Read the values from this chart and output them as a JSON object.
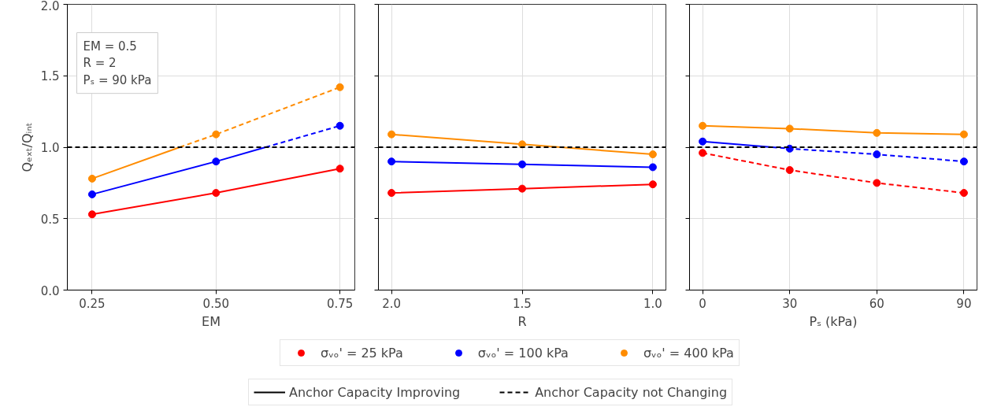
{
  "chart_data": [
    {
      "type": "line",
      "xlabel": "EM",
      "ylabel": "Qₑₓₜ/Qᵢₙₜ",
      "xlim": [
        0.2,
        0.78
      ],
      "xticks": [
        {
          "value": 0.25,
          "label": "0.25"
        },
        {
          "value": 0.5,
          "label": "0.50"
        },
        {
          "value": 0.75,
          "label": "0.75"
        }
      ],
      "ylim": [
        0,
        2
      ],
      "yticks": [
        {
          "value": 0,
          "label": "0.0"
        },
        {
          "value": 0.5,
          "label": "0.5"
        },
        {
          "value": 1,
          "label": "1.0"
        },
        {
          "value": 1.5,
          "label": "1.5"
        },
        {
          "value": 2,
          "label": "2.0"
        }
      ],
      "grid": true,
      "legend": "bottom",
      "marker": "circle",
      "annotations": [
        "EM = 0.5",
        "R = 2",
        "Pₛ = 90 kPa"
      ],
      "ref_lines": [
        {
          "axis": "y",
          "value": 1,
          "label": null,
          "color": "#000000",
          "line_style": "dashed"
        }
      ],
      "series": [
        {
          "name": "σᵥₒ' = 25 kPa",
          "type": "scatter",
          "color": "#ff0000",
          "x": [
            0.25,
            0.5,
            0.75
          ],
          "values": [
            0.53,
            0.68,
            0.85
          ]
        },
        {
          "name": "σᵥₒ' = 100 kPa",
          "type": "scatter",
          "color": "#0000ff",
          "x": [
            0.25,
            0.5,
            0.75
          ],
          "values": [
            0.67,
            0.9,
            1.15
          ]
        },
        {
          "name": "σᵥₒ' = 400 kPa",
          "type": "scatter",
          "color": "#ff8c00",
          "x": [
            0.25,
            0.5,
            0.75
          ],
          "values": [
            0.78,
            1.09,
            1.42
          ]
        },
        {
          "marker": "none",
          "color": "#ff0000",
          "line_style": "solid",
          "x": [
            0.25,
            0.5,
            0.75
          ],
          "values": [
            0.53,
            0.68,
            0.85
          ]
        },
        {
          "marker": "none",
          "color": "#0000ff",
          "line_style": "solid",
          "x": [
            0.25,
            0.5,
            0.6
          ],
          "values": [
            0.67,
            0.9,
            1.0
          ]
        },
        {
          "marker": "none",
          "color": "#0000ff",
          "line_style": "dashed",
          "x": [
            0.6,
            0.75
          ],
          "values": [
            1.0,
            1.15
          ]
        },
        {
          "marker": "none",
          "color": "#ff8c00",
          "line_style": "solid",
          "x": [
            0.25,
            0.427
          ],
          "values": [
            0.78,
            1.0
          ]
        },
        {
          "marker": "none",
          "color": "#ff8c00",
          "line_style": "dashed",
          "x": [
            0.427,
            0.5,
            0.75
          ],
          "values": [
            1.0,
            1.09,
            1.42
          ]
        },
        {
          "name": "Anchor Capacity Improving",
          "marker": "none",
          "color": "#000000",
          "line_style": "solid"
        },
        {
          "name": "Anchor Capacity not Changing",
          "marker": "none",
          "color": "#000000",
          "line_style": "dashed"
        }
      ]
    },
    {
      "type": "line",
      "xlabel": "R",
      "xlim": [
        2.05,
        0.95
      ],
      "xticks": [
        {
          "value": 2,
          "label": "2.0"
        },
        {
          "value": 1.5,
          "label": "1.5"
        },
        {
          "value": 1,
          "label": "1.0"
        }
      ],
      "ylim": [
        0,
        2
      ],
      "yticks": [
        {
          "value": 0,
          "label": null
        },
        {
          "value": 0.5,
          "label": null
        },
        {
          "value": 1,
          "label": null
        },
        {
          "value": 1.5,
          "label": null
        },
        {
          "value": 2,
          "label": null
        }
      ],
      "tick_labels": "x",
      "grid": true,
      "marker": "circle",
      "ref_lines": [
        {
          "axis": "y",
          "value": 1,
          "label": null,
          "color": "#000000",
          "line_style": "dashed"
        }
      ],
      "series": [
        {
          "type": "scatter",
          "color": "#ff0000",
          "x": [
            2,
            1.5,
            1
          ],
          "values": [
            0.68,
            0.71,
            0.74
          ]
        },
        {
          "type": "scatter",
          "color": "#0000ff",
          "x": [
            2,
            1.5,
            1
          ],
          "values": [
            0.9,
            0.88,
            0.86
          ]
        },
        {
          "type": "scatter",
          "color": "#ff8c00",
          "x": [
            2,
            1.5,
            1
          ],
          "values": [
            1.09,
            1.02,
            0.95
          ]
        },
        {
          "marker": "none",
          "color": "#ff0000",
          "line_style": "solid",
          "x": [
            2,
            1.5,
            1
          ],
          "values": [
            0.68,
            0.71,
            0.74
          ]
        },
        {
          "marker": "none",
          "color": "#0000ff",
          "line_style": "solid",
          "x": [
            2,
            1.5,
            1
          ],
          "values": [
            0.9,
            0.88,
            0.86
          ]
        },
        {
          "marker": "none",
          "color": "#ff8c00",
          "line_style": "solid",
          "x": [
            2,
            1.5,
            1
          ],
          "values": [
            1.09,
            1.02,
            0.95
          ]
        }
      ]
    },
    {
      "type": "line",
      "xlabel": "Pₛ (kPa)",
      "xlim": [
        -4.5,
        94.5
      ],
      "xticks": [
        0,
        30,
        60,
        90
      ],
      "ylim": [
        0,
        2
      ],
      "yticks": [
        {
          "value": 0,
          "label": null
        },
        {
          "value": 0.5,
          "label": null
        },
        {
          "value": 1,
          "label": null
        },
        {
          "value": 1.5,
          "label": null
        },
        {
          "value": 2,
          "label": null
        }
      ],
      "tick_labels": "x",
      "grid": true,
      "marker": "circle",
      "ref_lines": [
        {
          "axis": "y",
          "value": 1,
          "label": null,
          "color": "#000000",
          "line_style": "dashed"
        }
      ],
      "series": [
        {
          "type": "scatter",
          "color": "#ff0000",
          "x": [
            0,
            30,
            60,
            90
          ],
          "values": [
            0.96,
            0.84,
            0.75,
            0.68
          ]
        },
        {
          "type": "scatter",
          "color": "#0000ff",
          "x": [
            0,
            30,
            60,
            90
          ],
          "values": [
            1.04,
            0.99,
            0.95,
            0.9
          ]
        },
        {
          "type": "scatter",
          "color": "#ff8c00",
          "x": [
            0,
            30,
            60,
            90
          ],
          "values": [
            1.15,
            1.13,
            1.1,
            1.09
          ]
        },
        {
          "marker": "none",
          "color": "#ff0000",
          "line_style": "dashed",
          "x": [
            0,
            30,
            60,
            90
          ],
          "values": [
            0.96,
            0.84,
            0.75,
            0.68
          ]
        },
        {
          "marker": "none",
          "color": "#0000ff",
          "line_style": "solid",
          "x": [
            0,
            24
          ],
          "values": [
            1.04,
            1.0
          ]
        },
        {
          "marker": "none",
          "color": "#0000ff",
          "line_style": "dashed",
          "x": [
            24,
            30,
            60,
            90
          ],
          "values": [
            1.0,
            0.99,
            0.95,
            0.9
          ]
        },
        {
          "marker": "none",
          "color": "#ff8c00",
          "line_style": "solid",
          "x": [
            0,
            30,
            60,
            90
          ],
          "values": [
            1.15,
            1.13,
            1.1,
            1.09
          ]
        }
      ]
    }
  ]
}
